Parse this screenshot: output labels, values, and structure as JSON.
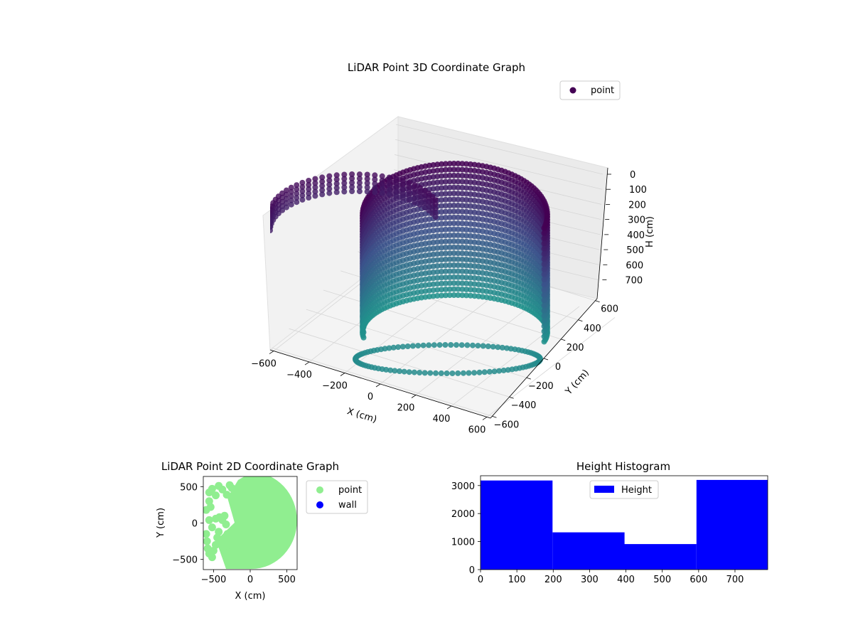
{
  "chart_data": [
    {
      "type": "scatter",
      "projection": "3d",
      "title": "LiDAR Point 3D Coordinate Graph",
      "xlabel": "X (cm)",
      "ylabel": "Y (cm)",
      "zlabel": "H (cm)",
      "xticks": [
        -600,
        -400,
        -200,
        0,
        200,
        400,
        600
      ],
      "yticks": [
        -600,
        -400,
        -200,
        0,
        200,
        400,
        600
      ],
      "zticks": [
        0,
        100,
        200,
        300,
        400,
        500,
        600,
        700
      ],
      "xlim": [
        -620,
        620
      ],
      "ylim": [
        -620,
        620
      ],
      "zlim": [
        0,
        800
      ],
      "z_axis_inverted": true,
      "grid": true,
      "colormap": "viridis",
      "legend": {
        "placement": "upper-right",
        "entries": [
          {
            "label": "point",
            "color": "#440154"
          }
        ]
      },
      "series": [
        {
          "name": "point",
          "description_shape": "cylindrical shell of points (radius ~560 cm) on the +X side plus sparse points along -X wall",
          "height_range": [
            0,
            790
          ]
        }
      ]
    },
    {
      "type": "scatter",
      "title": "LiDAR Point 2D Coordinate Graph",
      "xlabel": "X (cm)",
      "ylabel": "Y (cm)",
      "xticks": [
        -500,
        0,
        500
      ],
      "yticks": [
        -500,
        0,
        500
      ],
      "xlim": [
        -640,
        640
      ],
      "ylim": [
        -640,
        640
      ],
      "legend": {
        "placement": "outside-right",
        "entries": [
          {
            "label": "point",
            "color": "#90ee90"
          },
          {
            "label": "wall",
            "color": "#0000ff"
          }
        ]
      },
      "series": [
        {
          "name": "point",
          "color": "#90ee90",
          "points": [
            [
              -560,
              420
            ],
            [
              -520,
              470
            ],
            [
              -470,
              380
            ],
            [
              -430,
              510
            ],
            [
              -380,
              460
            ],
            [
              -320,
              390
            ],
            [
              -280,
              520
            ],
            [
              -250,
              480
            ],
            [
              -560,
              300
            ],
            [
              -540,
              220
            ],
            [
              -600,
              180
            ],
            [
              -600,
              -150
            ],
            [
              -590,
              -250
            ],
            [
              -580,
              -350
            ],
            [
              -560,
              -420
            ],
            [
              -520,
              -470
            ],
            [
              -500,
              -380
            ],
            [
              -470,
              -300
            ],
            [
              -450,
              -200
            ],
            [
              -430,
              -120
            ],
            [
              -520,
              -60
            ],
            [
              -560,
              40
            ],
            [
              -470,
              60
            ],
            [
              -420,
              80
            ],
            [
              -380,
              40
            ],
            [
              -350,
              100
            ],
            [
              -330,
              -20
            ],
            [
              -310,
              -150
            ],
            [
              -300,
              -260
            ],
            [
              -280,
              -330
            ],
            [
              -260,
              -400
            ],
            [
              -230,
              -470
            ],
            [
              -200,
              -520
            ]
          ]
        }
      ]
    },
    {
      "type": "bar",
      "histogram": true,
      "title": "Height Histogram",
      "xlabel": "",
      "ylabel": "",
      "xticks": [
        0,
        100,
        200,
        300,
        400,
        500,
        600,
        700
      ],
      "yticks": [
        0,
        1000,
        2000,
        3000
      ],
      "xlim": [
        0,
        790
      ],
      "ylim": [
        0,
        3350
      ],
      "legend": {
        "placement": "upper-center",
        "entries": [
          {
            "label": "Height",
            "color": "#0000ff"
          }
        ]
      },
      "bins": [
        {
          "from": 0,
          "to": 198,
          "value": 3180
        },
        {
          "from": 198,
          "to": 396,
          "value": 1330
        },
        {
          "from": 396,
          "to": 594,
          "value": 910
        },
        {
          "from": 594,
          "to": 790,
          "value": 3200
        }
      ],
      "color": "#0000ff"
    }
  ]
}
